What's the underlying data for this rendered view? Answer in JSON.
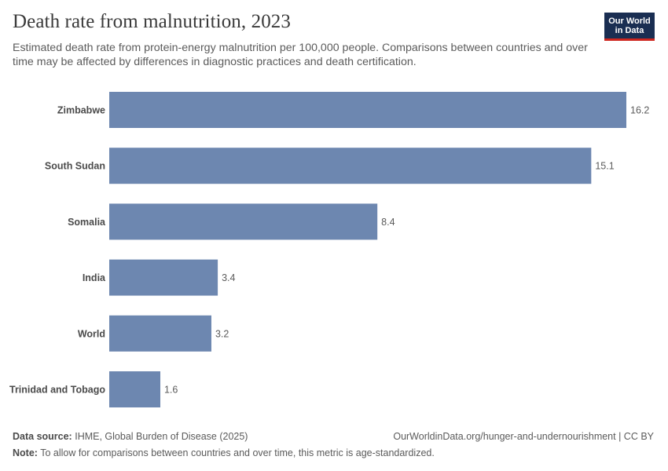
{
  "header": {
    "title": "Death rate from malnutrition, 2023",
    "subtitle": "Estimated death rate from protein-energy malnutrition per 100,000 people. Comparisons between countries and over time may be affected by differences in diagnostic practices and death certification.",
    "logo_line1": "Our World",
    "logo_line2": "in Data"
  },
  "footer": {
    "source_label": "Data source:",
    "source_text": "IHME, Global Burden of Disease (2025)",
    "url_text": "OurWorldinData.org/hunger-and-undernourishment | CC BY",
    "note_label": "Note:",
    "note_text": "To allow for comparisons between countries and over time, this metric is age-standardized."
  },
  "colors": {
    "bar": "#6d87b0",
    "logo_bg": "#1a2e52",
    "logo_accent": "#ce261e"
  },
  "chart_data": {
    "type": "bar",
    "orientation": "horizontal",
    "title": "Death rate from malnutrition, 2023",
    "categories": [
      "Zimbabwe",
      "South Sudan",
      "Somalia",
      "India",
      "World",
      "Trinidad and Tobago"
    ],
    "values": [
      16.2,
      15.1,
      8.4,
      3.4,
      3.2,
      1.6
    ],
    "value_labels": [
      "16.2",
      "15.1",
      "8.4",
      "3.4",
      "3.2",
      "1.6"
    ],
    "xlabel": "",
    "ylabel": "",
    "xlim": [
      0,
      16.2
    ],
    "grid": false
  }
}
